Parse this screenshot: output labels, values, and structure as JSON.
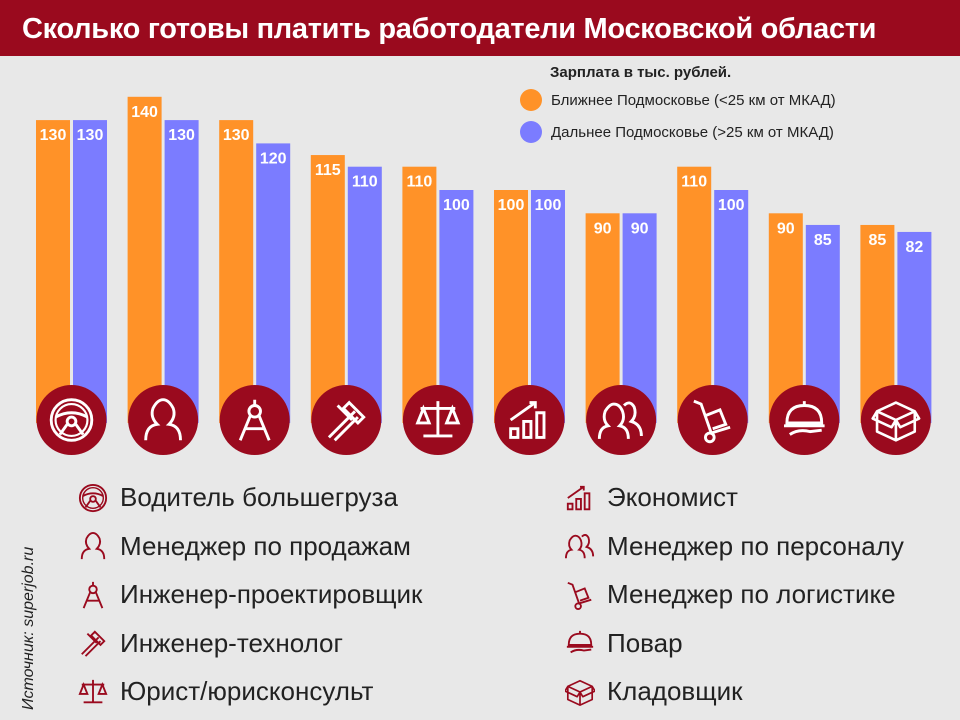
{
  "title": "Сколько готовы платить работодатели Московской области",
  "source": "Источник: superjob.ru",
  "colors": {
    "header": "#9a0a1e",
    "near": "#ff9228",
    "far": "#7b7cff",
    "icon_bg": "#9a0a1e"
  },
  "chart_data": {
    "type": "bar",
    "legend_title": "Зарплата в тыс. рублей.",
    "legend_position": "top-right",
    "grid": false,
    "ylim": [
      0,
      140
    ],
    "categories": [
      "Водитель большегруза",
      "Менеджер по продажам",
      "Инженер-проектировщик",
      "Инженер-технолог",
      "Юрист/юрисконсульт",
      "Экономист",
      "Менеджер по персоналу",
      "Менеджер по логистике",
      "Повар",
      "Кладовщик"
    ],
    "icons": [
      "steering-wheel-icon",
      "person-icon",
      "compass-icon",
      "caliper-icon",
      "scales-icon",
      "growth-chart-icon",
      "people-icon",
      "hand-truck-icon",
      "cloche-icon",
      "box-icon"
    ],
    "series": [
      {
        "name": "Ближнее Подмосковье (<25 км от МКАД)",
        "values": [
          130,
          140,
          130,
          115,
          110,
          100,
          90,
          110,
          90,
          85
        ]
      },
      {
        "name": "Дальнее Подмосковье (>25 км от МКАД)",
        "values": [
          130,
          130,
          120,
          110,
          100,
          100,
          90,
          100,
          85,
          82
        ]
      }
    ]
  }
}
